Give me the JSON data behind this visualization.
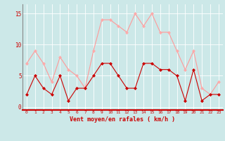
{
  "x": [
    0,
    1,
    2,
    3,
    4,
    5,
    6,
    7,
    8,
    9,
    10,
    11,
    12,
    13,
    14,
    15,
    16,
    17,
    18,
    19,
    20,
    21,
    22,
    23
  ],
  "wind_avg": [
    2,
    5,
    3,
    2,
    5,
    1,
    3,
    3,
    5,
    7,
    7,
    5,
    3,
    3,
    7,
    7,
    6,
    6,
    5,
    1,
    6,
    1,
    2,
    2
  ],
  "wind_gust": [
    7,
    9,
    7,
    4,
    8,
    6,
    5,
    3,
    9,
    14,
    14,
    13,
    12,
    15,
    13,
    15,
    12,
    12,
    9,
    6,
    9,
    3,
    2,
    4
  ],
  "bg_color": "#cce8e8",
  "line_avg_color": "#cc0000",
  "line_gust_color": "#ff9999",
  "marker_avg_color": "#cc0000",
  "marker_gust_color": "#ffaaaa",
  "xlabel": "Vent moyen/en rafales ( km/h )",
  "yticks": [
    0,
    5,
    10,
    15
  ],
  "xlim": [
    -0.5,
    23.5
  ],
  "ylim": [
    -0.5,
    16.5
  ],
  "grid_color": "#aad4d4",
  "spine_color": "#888888",
  "tick_color": "#cc0000",
  "xlabel_color": "#cc0000"
}
